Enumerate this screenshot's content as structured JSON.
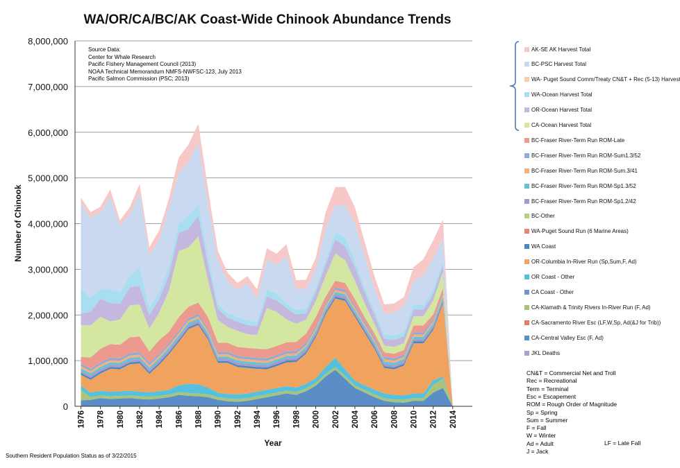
{
  "chart_data": {
    "type": "area",
    "stacked": true,
    "title": "WA/OR/CA/BC/AK Coast-Wide Chinook Abundance Trends",
    "xlabel": "Year",
    "ylabel": "Number of Chinook",
    "ylim": [
      0,
      8000000
    ],
    "xlim": [
      1975.4,
      2016.0
    ],
    "y_ticks": [
      "0",
      "1,000,000",
      "2,000,000",
      "3,000,000",
      "4,000,000",
      "5,000,000",
      "6,000,000",
      "7,000,000",
      "8,000,000"
    ],
    "y_tick_values": [
      0,
      1000000,
      2000000,
      3000000,
      4000000,
      5000000,
      6000000,
      7000000,
      8000000
    ],
    "x_ticks": [
      1976,
      1978,
      1980,
      1982,
      1984,
      1986,
      1988,
      1990,
      1992,
      1994,
      1996,
      1998,
      2000,
      2002,
      2004,
      2006,
      2008,
      2010,
      2012,
      2014
    ],
    "grid": true,
    "legend_position": "right",
    "x": [
      1976,
      1977,
      1978,
      1979,
      1980,
      1981,
      1982,
      1983,
      1984,
      1985,
      1986,
      1987,
      1988,
      1989,
      1990,
      1991,
      1992,
      1993,
      1994,
      1995,
      1996,
      1997,
      1998,
      1999,
      2000,
      2001,
      2002,
      2003,
      2004,
      2005,
      2006,
      2007,
      2008,
      2009,
      2010,
      2011,
      2012,
      2013,
      2014
    ],
    "series": [
      {
        "name": "JKL Deaths",
        "color": "#a6a3cc",
        "values": [
          0,
          0,
          0,
          0,
          0,
          0,
          0,
          0,
          0,
          0,
          0,
          0,
          0,
          0,
          0,
          0,
          0,
          0,
          0,
          0,
          0,
          0,
          0,
          0,
          0,
          0,
          0,
          0,
          0,
          0,
          0,
          0,
          0,
          0,
          0,
          0,
          0,
          0,
          0
        ]
      },
      {
        "name": "CA-Central Valley Esc (F, Ad)",
        "color": "#5b8ec7",
        "values": [
          130000,
          140000,
          180000,
          160000,
          170000,
          180000,
          160000,
          150000,
          170000,
          200000,
          250000,
          230000,
          220000,
          200000,
          140000,
          110000,
          100000,
          120000,
          160000,
          200000,
          240000,
          280000,
          250000,
          330000,
          450000,
          650000,
          800000,
          600000,
          400000,
          300000,
          200000,
          120000,
          90000,
          80000,
          120000,
          120000,
          300000,
          400000,
          0
        ]
      },
      {
        "name": "CA-Sacramento River Esc (LF,W,Sp, Ad(&J for Trib))",
        "color": "#e47c6d",
        "values": [
          0,
          0,
          0,
          0,
          0,
          0,
          0,
          0,
          0,
          0,
          0,
          0,
          0,
          0,
          0,
          0,
          0,
          0,
          0,
          0,
          0,
          0,
          0,
          0,
          0,
          0,
          0,
          0,
          0,
          0,
          0,
          0,
          0,
          0,
          0,
          0,
          0,
          0,
          0
        ]
      },
      {
        "name": "CA-Klamath & Trinity Rivers In-River Run (F, Ad)",
        "color": "#a9c47a",
        "values": [
          230000,
          60000,
          60000,
          60000,
          60000,
          60000,
          60000,
          60000,
          60000,
          60000,
          60000,
          60000,
          60000,
          60000,
          60000,
          60000,
          60000,
          60000,
          60000,
          60000,
          60000,
          60000,
          60000,
          60000,
          60000,
          60000,
          60000,
          60000,
          60000,
          60000,
          60000,
          60000,
          60000,
          60000,
          60000,
          60000,
          170000,
          200000,
          0
        ]
      },
      {
        "name": "CA Coast - Other",
        "color": "#6b97c9",
        "values": [
          0,
          0,
          0,
          0,
          0,
          0,
          0,
          0,
          0,
          0,
          0,
          0,
          0,
          0,
          0,
          0,
          0,
          0,
          0,
          0,
          0,
          0,
          0,
          0,
          0,
          0,
          0,
          0,
          0,
          0,
          0,
          0,
          0,
          0,
          0,
          0,
          0,
          0,
          0
        ]
      },
      {
        "name": "OR Coast - Other",
        "color": "#56c1dc",
        "values": [
          100000,
          100000,
          100000,
          100000,
          100000,
          100000,
          100000,
          100000,
          100000,
          100000,
          150000,
          200000,
          200000,
          150000,
          100000,
          100000,
          100000,
          100000,
          100000,
          100000,
          100000,
          100000,
          100000,
          100000,
          100000,
          150000,
          200000,
          150000,
          100000,
          100000,
          100000,
          100000,
          100000,
          100000,
          100000,
          100000,
          100000,
          50000,
          0
        ]
      },
      {
        "name": "OR-Columbia In-River Run (Sp,Sum,F, Ad)",
        "color": "#f0a25f",
        "values": [
          230000,
          280000,
          380000,
          500000,
          480000,
          580000,
          620000,
          400000,
          580000,
          780000,
          950000,
          1200000,
          1300000,
          1050000,
          650000,
          680000,
          600000,
          560000,
          500000,
          450000,
          480000,
          520000,
          560000,
          660000,
          900000,
          1150000,
          1300000,
          1500000,
          1400000,
          1150000,
          900000,
          560000,
          560000,
          650000,
          1100000,
          1100000,
          1100000,
          1600000,
          0
        ]
      },
      {
        "name": "WA Coast",
        "color": "#4a86c1",
        "values": [
          40000,
          40000,
          40000,
          40000,
          40000,
          40000,
          40000,
          40000,
          40000,
          40000,
          40000,
          40000,
          40000,
          40000,
          40000,
          40000,
          40000,
          40000,
          40000,
          40000,
          40000,
          40000,
          40000,
          40000,
          40000,
          40000,
          40000,
          40000,
          40000,
          40000,
          40000,
          40000,
          40000,
          40000,
          40000,
          40000,
          40000,
          40000,
          0
        ]
      },
      {
        "name": "WA-Puget Sound Run (6 Marine Areas)",
        "color": "#e8876c",
        "values": [
          0,
          0,
          0,
          0,
          0,
          0,
          0,
          0,
          0,
          0,
          0,
          0,
          0,
          0,
          0,
          0,
          0,
          0,
          0,
          0,
          0,
          0,
          0,
          0,
          0,
          0,
          0,
          0,
          0,
          0,
          0,
          0,
          0,
          0,
          0,
          0,
          0,
          0,
          0
        ]
      },
      {
        "name": "BC-Other",
        "color": "#b5cf87",
        "values": [
          0,
          0,
          0,
          0,
          0,
          0,
          0,
          0,
          0,
          0,
          0,
          0,
          0,
          0,
          0,
          0,
          0,
          0,
          0,
          0,
          0,
          0,
          0,
          0,
          0,
          0,
          0,
          0,
          0,
          0,
          0,
          0,
          0,
          0,
          0,
          0,
          0,
          0,
          0
        ]
      },
      {
        "name": "BC-Fraser River-Term Run ROM-Sp1.2/42",
        "color": "#a49bc9",
        "values": [
          50000,
          50000,
          50000,
          50000,
          50000,
          50000,
          50000,
          50000,
          50000,
          50000,
          50000,
          50000,
          50000,
          50000,
          50000,
          50000,
          50000,
          50000,
          50000,
          50000,
          50000,
          50000,
          50000,
          50000,
          50000,
          50000,
          50000,
          50000,
          50000,
          50000,
          50000,
          50000,
          50000,
          50000,
          50000,
          50000,
          50000,
          50000,
          0
        ]
      },
      {
        "name": "BC-Fraser River-Term Run ROM-Sp1.3/52",
        "color": "#63c2d9",
        "values": [
          50000,
          50000,
          50000,
          50000,
          50000,
          50000,
          50000,
          50000,
          50000,
          50000,
          50000,
          50000,
          50000,
          50000,
          50000,
          50000,
          50000,
          50000,
          50000,
          50000,
          50000,
          50000,
          50000,
          50000,
          50000,
          50000,
          50000,
          50000,
          50000,
          50000,
          50000,
          50000,
          50000,
          50000,
          50000,
          50000,
          50000,
          50000,
          0
        ]
      },
      {
        "name": "BC-Fraser River-Term Run ROM-Sum.3/41",
        "color": "#f4b07a",
        "values": [
          50000,
          50000,
          50000,
          50000,
          50000,
          50000,
          50000,
          50000,
          50000,
          50000,
          50000,
          50000,
          50000,
          50000,
          50000,
          50000,
          50000,
          50000,
          50000,
          50000,
          50000,
          50000,
          50000,
          50000,
          50000,
          50000,
          50000,
          50000,
          50000,
          50000,
          50000,
          50000,
          50000,
          50000,
          50000,
          50000,
          50000,
          50000,
          0
        ]
      },
      {
        "name": "BC-Fraser River-Term Run ROM-Sum1.3/52",
        "color": "#8eaad6",
        "values": [
          50000,
          50000,
          50000,
          50000,
          50000,
          50000,
          50000,
          50000,
          50000,
          50000,
          50000,
          50000,
          50000,
          50000,
          50000,
          50000,
          50000,
          50000,
          50000,
          50000,
          50000,
          50000,
          50000,
          50000,
          50000,
          50000,
          50000,
          50000,
          50000,
          50000,
          50000,
          50000,
          50000,
          50000,
          50000,
          50000,
          50000,
          50000,
          0
        ]
      },
      {
        "name": "BC-Fraser River-Term Run ROM-Late",
        "color": "#eb9a8d",
        "values": [
          150000,
          250000,
          300000,
          300000,
          300000,
          350000,
          350000,
          250000,
          300000,
          250000,
          300000,
          250000,
          250000,
          250000,
          200000,
          200000,
          200000,
          200000,
          200000,
          200000,
          200000,
          200000,
          200000,
          200000,
          200000,
          150000,
          150000,
          150000,
          150000,
          100000,
          100000,
          100000,
          100000,
          100000,
          150000,
          150000,
          100000,
          100000,
          0
        ]
      },
      {
        "name": "CA-Ocean Harvest Total",
        "color": "#d4e7a1",
        "values": [
          700000,
          700000,
          700000,
          500000,
          550000,
          700000,
          700000,
          500000,
          600000,
          900000,
          1450000,
          1300000,
          1450000,
          800000,
          500000,
          350000,
          350000,
          300000,
          300000,
          900000,
          750000,
          500000,
          400000,
          300000,
          350000,
          450000,
          600000,
          500000,
          400000,
          300000,
          200000,
          150000,
          150000,
          150000,
          200000,
          200000,
          300000,
          350000,
          0
        ]
      },
      {
        "name": "OR-Ocean Harvest Total",
        "color": "#c4b8df",
        "values": [
          250000,
          300000,
          400000,
          400000,
          350000,
          400000,
          400000,
          300000,
          300000,
          350000,
          400000,
          400000,
          450000,
          350000,
          250000,
          200000,
          200000,
          200000,
          200000,
          250000,
          250000,
          250000,
          200000,
          150000,
          200000,
          250000,
          300000,
          300000,
          300000,
          250000,
          200000,
          150000,
          150000,
          150000,
          150000,
          150000,
          150000,
          150000,
          0
        ]
      },
      {
        "name": "WA-Ocean Harvest Total",
        "color": "#a8def0",
        "values": [
          550000,
          300000,
          200000,
          300000,
          250000,
          250000,
          400000,
          150000,
          150000,
          200000,
          200000,
          300000,
          250000,
          200000,
          100000,
          100000,
          100000,
          100000,
          100000,
          150000,
          150000,
          100000,
          100000,
          100000,
          100000,
          100000,
          150000,
          200000,
          150000,
          100000,
          100000,
          100000,
          100000,
          100000,
          100000,
          100000,
          100000,
          100000,
          0
        ]
      },
      {
        "name": "WA- Puget Sound Comm/Treaty CN&T + Rec (5-13) Harvest",
        "color": "#f8cfa3",
        "values": [
          0,
          0,
          0,
          0,
          0,
          0,
          0,
          0,
          0,
          0,
          0,
          0,
          0,
          0,
          0,
          0,
          0,
          0,
          0,
          0,
          0,
          0,
          0,
          0,
          0,
          0,
          0,
          0,
          0,
          0,
          0,
          0,
          0,
          0,
          0,
          0,
          0,
          0,
          0
        ]
      },
      {
        "name": "BC-PSC Harvest Total",
        "color": "#c9d9f0",
        "values": [
          1870000,
          1760000,
          1690000,
          2030000,
          1450000,
          1340000,
          1640000,
          1150000,
          1150000,
          1270000,
          1100000,
          1170000,
          1350000,
          1150000,
          960000,
          700000,
          600000,
          820000,
          500000,
          660000,
          620000,
          1050000,
          450000,
          430000,
          400000,
          690000,
          600000,
          700000,
          810000,
          700000,
          500000,
          450000,
          500000,
          560000,
          530000,
          650000,
          670000,
          500000,
          0
        ]
      },
      {
        "name": "AK-SE AK Harvest Total",
        "color": "#f7c8c8",
        "values": [
          120000,
          120000,
          120000,
          160000,
          120000,
          160000,
          200000,
          180000,
          200000,
          200000,
          350000,
          380000,
          420000,
          300000,
          200000,
          180000,
          150000,
          150000,
          200000,
          250000,
          250000,
          250000,
          200000,
          200000,
          250000,
          350000,
          400000,
          400000,
          350000,
          300000,
          250000,
          200000,
          200000,
          200000,
          300000,
          350000,
          400000,
          400000,
          0
        ]
      }
    ]
  },
  "legend_order": [
    "AK-SE AK Harvest Total",
    "BC-PSC Harvest Total",
    "WA- Puget Sound Comm/Treaty CN&T + Rec (5-13) Harvest",
    "WA-Ocean Harvest Total",
    "OR-Ocean Harvest Total",
    "CA-Ocean Harvest Total",
    "BC-Fraser River-Term Run ROM-Late",
    "BC-Fraser River-Term Run ROM-Sum1.3/52",
    "BC-Fraser River-Term Run ROM-Sum.3/41",
    "BC-Fraser River-Term Run ROM-Sp1.3/52",
    "BC-Fraser River-Term Run ROM-Sp1.2/42",
    "BC-Other",
    "WA-Puget Sound Run (6 Marine Areas)",
    "WA Coast",
    "OR-Columbia In-River Run (Sp,Sum,F, Ad)",
    "OR Coast - Other",
    "CA Coast - Other",
    "CA-Klamath & Trinity Rivers In-River Run (F, Ad)",
    "CA-Sacramento River Esc (LF,W,Sp, Ad(&J for Trib))",
    "CA-Central Valley Esc (F, Ad)",
    "JKL Deaths"
  ],
  "source_lines": [
    "Source Data:",
    "Center for Whale Research",
    "Pacific Fishery Management Council (2013)",
    "NOAA Technical Memorandum NMFS-NWFSC-123, July 2013",
    "Pacific Salmon Commission (PSC; 2013)"
  ],
  "abbreviations": [
    "CN&T = Commercial Net and Troll",
    "Rec = Recreational",
    "Term = Terminal",
    "Esc = Escapement",
    "ROM = Rough Order of Magnitude",
    "Sp = Spring",
    "Sum = Summer",
    "F = Fall",
    "W = Winter",
    "Ad = Adult",
    "J = Jack"
  ],
  "abbreviation_extra": "LF = Late Fall",
  "footer_note": "Southern Resident Population Status as of 3/22/2015",
  "colors": {
    "grid": "#7f7f7f",
    "bracket": "#4e7bb0"
  }
}
